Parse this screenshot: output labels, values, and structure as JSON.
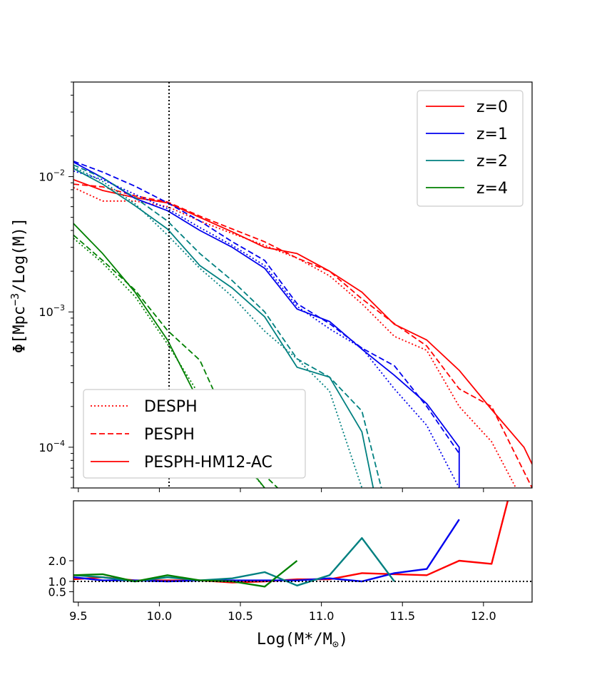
{
  "chart_data": {
    "type": "line",
    "xlabel": "Log(M*/M",
    "xlabel_sub": "⊙",
    "xlabel_close": ")",
    "ylabel": "Φ[Mpc",
    "ylabel_sup": "−3",
    "ylabel_rest": "/Log(M)]",
    "xlim": [
      9.47,
      12.3
    ],
    "ylim": [
      5e-05,
      0.05
    ],
    "ratio_ylim": [
      0.0,
      4.9
    ],
    "x_ticks": [
      9.5,
      10.0,
      10.5,
      11.0,
      11.5,
      12.0
    ],
    "x_tick_labels": [
      "9.5",
      "10.0",
      "10.5",
      "11.0",
      "11.5",
      "12.0"
    ],
    "y_ticks": [
      0.0001,
      0.001,
      0.01
    ],
    "y_tick_base": [
      "10",
      "10",
      "10"
    ],
    "y_tick_exp": [
      "−4",
      "−3",
      "−2"
    ],
    "ratio_ticks": [
      0.5,
      1.0,
      2.0
    ],
    "ratio_tick_labels": [
      "0.5",
      "1.0",
      "2.0"
    ],
    "vline_x": 10.06,
    "ratio_hline": 1.0,
    "colors": {
      "z0": "#ff0000",
      "z1": "#0000ee",
      "z2": "#008080",
      "z4": "#008000"
    },
    "legend_redshift": [
      "z=0",
      "z=1",
      "z=2",
      "z=4"
    ],
    "legend_models": [
      "DESPH",
      "PESPH",
      "PESPH-HM12-AC"
    ],
    "series": [
      {
        "name": "z=0 DESPH",
        "color": "#ff0000",
        "style": "dotted",
        "x": [
          9.47,
          9.65,
          9.85,
          10.05,
          10.25,
          10.45,
          10.65,
          10.85,
          11.05,
          11.25,
          11.45,
          11.65,
          11.85,
          12.05,
          12.2
        ],
        "y": [
          0.0083,
          0.0066,
          0.0066,
          0.006,
          0.0047,
          0.0038,
          0.0031,
          0.0025,
          0.00185,
          0.00115,
          0.00066,
          0.00052,
          0.0002,
          0.00011,
          5e-05
        ]
      },
      {
        "name": "z=0 PESPH",
        "color": "#ff0000",
        "style": "dashed",
        "x": [
          9.47,
          9.65,
          9.85,
          10.05,
          10.25,
          10.45,
          10.65,
          10.85,
          11.05,
          11.25,
          11.45,
          11.65,
          11.85,
          12.05,
          12.3
        ],
        "y": [
          0.0088,
          0.0084,
          0.0072,
          0.0065,
          0.0051,
          0.0041,
          0.0033,
          0.0025,
          0.002,
          0.00125,
          0.00082,
          0.00056,
          0.00027,
          0.0002,
          5e-05
        ]
      },
      {
        "name": "z=0 PESPH-HM12-AC",
        "color": "#ff0000",
        "style": "solid",
        "x": [
          9.47,
          9.65,
          9.85,
          10.05,
          10.25,
          10.45,
          10.65,
          10.85,
          11.05,
          11.25,
          11.45,
          11.65,
          11.85,
          12.05,
          12.25,
          12.3
        ],
        "y": [
          0.0095,
          0.0079,
          0.007,
          0.0064,
          0.005,
          0.0039,
          0.003,
          0.0027,
          0.002,
          0.0014,
          0.00081,
          0.00062,
          0.00037,
          0.00019,
          0.0001,
          7.5e-05
        ]
      },
      {
        "name": "z=1 DESPH",
        "color": "#0000ee",
        "style": "dotted",
        "x": [
          9.47,
          9.65,
          9.85,
          10.05,
          10.25,
          10.45,
          10.65,
          10.85,
          11.05,
          11.25,
          11.45,
          11.65,
          11.85
        ],
        "y": [
          0.011,
          0.0095,
          0.0074,
          0.0058,
          0.0042,
          0.0031,
          0.0022,
          0.0011,
          0.00075,
          0.00054,
          0.00027,
          0.000145,
          5e-05
        ]
      },
      {
        "name": "z=1 PESPH",
        "color": "#0000ee",
        "style": "dashed",
        "x": [
          9.47,
          9.65,
          9.85,
          10.05,
          10.25,
          10.45,
          10.65,
          10.85,
          11.05,
          11.25,
          11.45,
          11.65,
          11.85
        ],
        "y": [
          0.013,
          0.0108,
          0.0085,
          0.0064,
          0.0047,
          0.0033,
          0.0024,
          0.00115,
          0.00082,
          0.00054,
          0.0004,
          0.0002,
          9e-05
        ]
      },
      {
        "name": "z=1 PESPH-HM12-AC",
        "color": "#0000ee",
        "style": "solid",
        "x": [
          9.47,
          9.65,
          9.85,
          10.05,
          10.25,
          10.45,
          10.65,
          10.85,
          11.05,
          11.25,
          11.45,
          11.65,
          11.85,
          11.85
        ],
        "y": [
          0.0128,
          0.0098,
          0.0069,
          0.0056,
          0.004,
          0.003,
          0.0021,
          0.00105,
          0.00085,
          0.00053,
          0.00034,
          0.00021,
          0.0001,
          5e-05
        ]
      },
      {
        "name": "z=2 DESPH",
        "color": "#008080",
        "style": "dotted",
        "x": [
          9.47,
          9.65,
          9.85,
          10.05,
          10.25,
          10.45,
          10.65,
          10.85,
          11.05,
          11.25
        ],
        "y": [
          0.0118,
          0.0092,
          0.0063,
          0.0037,
          0.0021,
          0.0013,
          0.00072,
          0.00045,
          0.00026,
          5e-05
        ]
      },
      {
        "name": "z=2 PESPH",
        "color": "#008080",
        "style": "dashed",
        "x": [
          9.47,
          9.65,
          9.85,
          10.05,
          10.25,
          10.45,
          10.65,
          10.85,
          11.05,
          11.25,
          11.37
        ],
        "y": [
          0.0122,
          0.0098,
          0.007,
          0.0047,
          0.0027,
          0.0017,
          0.001,
          0.00045,
          0.00033,
          0.000185,
          5e-05
        ]
      },
      {
        "name": "z=2 PESPH-HM12-AC",
        "color": "#008080",
        "style": "solid",
        "x": [
          9.47,
          9.65,
          9.85,
          10.05,
          10.25,
          10.45,
          10.65,
          10.85,
          11.05,
          11.25,
          11.32
        ],
        "y": [
          0.0115,
          0.0088,
          0.0061,
          0.0041,
          0.0022,
          0.0015,
          0.00092,
          0.00039,
          0.00033,
          0.00013,
          5e-05
        ]
      },
      {
        "name": "z=4 DESPH",
        "color": "#008000",
        "style": "dotted",
        "x": [
          9.47,
          9.65,
          9.85,
          10.05,
          10.25,
          10.45,
          10.65
        ],
        "y": [
          0.0035,
          0.0023,
          0.0013,
          0.00058,
          0.00024,
          9.5e-05,
          5e-05
        ]
      },
      {
        "name": "z=4 PESPH",
        "color": "#008000",
        "style": "dashed",
        "x": [
          9.47,
          9.65,
          9.85,
          10.05,
          10.25,
          10.45,
          10.65,
          10.73
        ],
        "y": [
          0.0037,
          0.0024,
          0.00145,
          0.00073,
          0.00044,
          0.00013,
          6.2e-05,
          5e-05
        ]
      },
      {
        "name": "z=4 PESPH-HM12-AC",
        "color": "#008000",
        "style": "solid",
        "x": [
          9.47,
          9.65,
          9.85,
          10.05,
          10.25,
          10.45,
          10.65
        ],
        "y": [
          0.0045,
          0.0027,
          0.0014,
          0.00062,
          0.00021,
          0.0001,
          5e-05
        ]
      }
    ],
    "ratio_series": [
      {
        "name": "z=0 ratio",
        "color": "#ff0000",
        "x": [
          9.47,
          9.65,
          9.85,
          10.05,
          10.25,
          10.45,
          10.65,
          10.85,
          11.05,
          11.25,
          11.45,
          11.65,
          11.85,
          12.05,
          12.15
        ],
        "y": [
          1.1,
          1.2,
          1.05,
          1.05,
          1.05,
          0.95,
          1.0,
          1.1,
          1.1,
          1.4,
          1.35,
          1.3,
          2.0,
          1.85,
          4.9
        ]
      },
      {
        "name": "z=1 ratio",
        "color": "#0000ee",
        "x": [
          9.47,
          9.65,
          9.85,
          10.05,
          10.25,
          10.45,
          10.65,
          10.85,
          11.05,
          11.25,
          11.45,
          11.65,
          11.85
        ],
        "y": [
          1.2,
          1.05,
          1.05,
          1.0,
          1.05,
          1.05,
          1.05,
          1.05,
          1.15,
          1.0,
          1.4,
          1.6,
          4.0
        ]
      },
      {
        "name": "z=2 ratio",
        "color": "#008080",
        "x": [
          9.47,
          9.65,
          9.85,
          10.05,
          10.25,
          10.45,
          10.65,
          10.85,
          11.05,
          11.25,
          11.45
        ],
        "y": [
          1.3,
          1.2,
          1.0,
          1.2,
          1.05,
          1.15,
          1.45,
          0.8,
          1.3,
          3.1,
          1.0
        ]
      },
      {
        "name": "z=4 ratio",
        "color": "#008000",
        "x": [
          9.47,
          9.65,
          9.85,
          10.05,
          10.25,
          10.45,
          10.65,
          10.85
        ],
        "y": [
          1.3,
          1.35,
          1.0,
          1.3,
          1.05,
          1.0,
          0.75,
          2.0
        ]
      }
    ]
  }
}
